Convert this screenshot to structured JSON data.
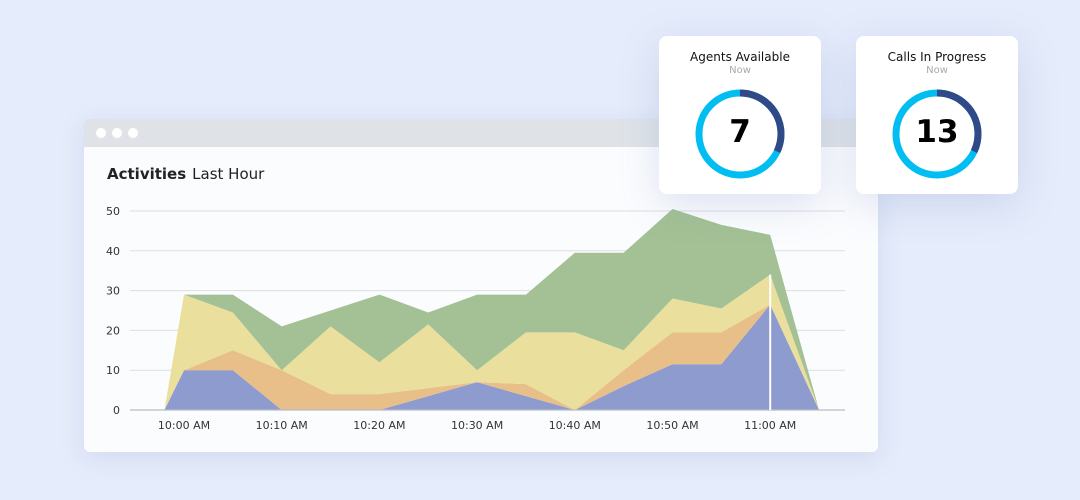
{
  "window": {
    "title": "Activities",
    "subtitle": "Last Hour"
  },
  "cards": [
    {
      "title": "Agents Available",
      "subtitle": "Now",
      "value": "7",
      "fraction_dark": 0.32
    },
    {
      "title": "Calls In Progress",
      "subtitle": "Now",
      "value": "13",
      "fraction_dark": 0.32
    }
  ],
  "colors": {
    "background": "#e5ecfb",
    "donut_light": "#00bdf2",
    "donut_dark": "#2f4a87"
  },
  "chart_data": {
    "type": "area",
    "stacked": true,
    "title": "Activities",
    "subtitle": "Last Hour",
    "x": [
      "9:58",
      "10:00",
      "10:05",
      "10:10",
      "10:15",
      "10:20",
      "10:25",
      "10:30",
      "10:35",
      "10:40",
      "10:45",
      "10:50",
      "10:55",
      "11:00",
      "11:05"
    ],
    "x_tick_labels": [
      "10:00 AM",
      "10:10 AM",
      "10:20 AM",
      "10:30 AM",
      "10:40 AM",
      "10:50 AM",
      "11:00 AM"
    ],
    "y_ticks": [
      0,
      10,
      20,
      30,
      40,
      50
    ],
    "ylim": [
      0,
      50
    ],
    "grid": true,
    "highlight_x": "11:00",
    "series": [
      {
        "color": "#8e9bcf",
        "values": [
          0,
          10,
          10,
          0,
          0,
          0,
          3.5,
          7,
          3.5,
          0,
          6,
          11.5,
          11.5,
          26.5,
          0
        ]
      },
      {
        "color": "#e8bf88",
        "values": [
          0,
          0,
          5,
          10,
          4,
          4,
          2,
          0,
          3,
          0,
          4,
          8,
          8,
          0,
          0
        ]
      },
      {
        "color": "#eadf9c",
        "values": [
          0,
          19,
          9.5,
          0,
          17,
          8,
          16,
          3,
          13,
          19.5,
          5,
          8.5,
          6,
          7.5,
          0
        ]
      },
      {
        "color": "#a3c194",
        "values": [
          0,
          0,
          4.5,
          11,
          4,
          17,
          3,
          19,
          9.5,
          20,
          24.5,
          22.5,
          21,
          10,
          0
        ]
      }
    ]
  }
}
